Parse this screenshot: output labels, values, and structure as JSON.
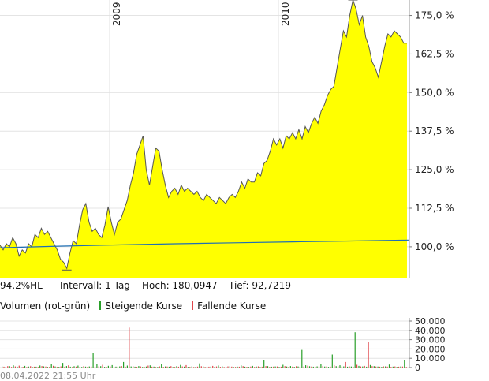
{
  "chart_data": [
    {
      "type": "area",
      "x_labels": [
        "2009",
        "2010"
      ],
      "y_ticks": [
        "175,0 %",
        "162,5 %",
        "150,0 %",
        "137,5 %",
        "125,0 %",
        "112,5 %",
        "100,0 %"
      ],
      "ylim": [
        90,
        180
      ],
      "grid": true,
      "series": [
        {
          "kind": "price",
          "color": "#ffff00",
          "line_color": "#555555",
          "values": [
            100.5,
            99,
            101,
            100,
            103,
            101,
            97,
            99,
            98,
            101,
            100,
            104,
            103,
            106,
            104,
            105,
            103,
            101,
            99,
            96,
            95,
            93,
            98,
            102,
            101,
            107,
            112,
            114,
            108,
            105,
            106,
            104,
            103,
            107,
            113,
            108,
            104,
            108,
            109,
            112,
            115,
            120,
            124,
            130,
            133,
            136,
            125,
            120,
            126,
            132,
            131,
            125,
            120,
            116,
            118,
            119,
            117,
            120,
            118,
            119,
            118,
            117,
            118,
            116,
            115,
            117,
            116,
            115,
            114,
            116,
            115,
            114,
            116,
            117,
            116,
            118,
            121,
            119,
            122,
            121,
            121,
            124,
            123,
            127,
            128,
            131,
            135,
            133,
            135,
            132,
            136,
            135,
            137,
            135,
            138,
            135,
            139,
            137,
            140,
            142,
            140,
            144,
            146,
            149,
            151,
            152,
            158,
            164,
            170,
            168,
            175,
            180,
            177,
            172,
            175,
            168,
            165,
            160,
            158,
            155,
            160,
            165,
            169,
            168,
            170,
            169,
            168,
            166,
            166
          ]
        },
        {
          "kind": "benchmark",
          "color": "#1f6fb4",
          "values": [
            99.7,
            100.2,
            100.6,
            101,
            101.3,
            101.6,
            101.9,
            102.2
          ]
        }
      ]
    },
    {
      "type": "bar",
      "y_ticks": [
        "50.000",
        "40.000",
        "30.000",
        "20.000",
        "10.000",
        "0"
      ],
      "ylim": [
        0,
        50000
      ],
      "grid": true,
      "series": [
        {
          "name": "Steigende Kurse",
          "color": "#2aa02a",
          "values": [
            1200,
            800,
            1500,
            2400,
            900,
            700,
            1800,
            1100,
            600,
            900,
            2200,
            1300,
            700,
            3500,
            1200,
            800,
            5000,
            1600,
            900,
            1400,
            2100,
            700,
            1000,
            1200,
            16000,
            4000,
            1500,
            800,
            1900,
            2600,
            1000,
            1300,
            6000,
            2100,
            1200,
            900,
            1600,
            700,
            1100,
            2400,
            1000,
            700,
            3800,
            1200,
            900,
            600,
            1500,
            2800,
            1000,
            700,
            1300,
            800,
            4500,
            1200,
            900,
            1100,
            700,
            2200,
            1300,
            800,
            1500,
            600,
            1000,
            2300,
            900,
            700,
            1800,
            1100,
            600,
            8000,
            1500,
            900,
            1200,
            700,
            3000,
            1100,
            1600,
            800,
            1200,
            19000,
            2500,
            1400,
            900,
            1300,
            4200,
            1100,
            800,
            14000,
            1500,
            2500,
            1300,
            900,
            1100,
            38000,
            1800,
            1200,
            900,
            2700,
            1500,
            1100,
            800,
            1300,
            3200,
            1000,
            700,
            1200,
            8000
          ]
        },
        {
          "name": "Fallende Kurse",
          "color": "#e0474c",
          "values": [
            900,
            1500,
            700,
            1200,
            2000,
            800,
            600,
            1400,
            900,
            700,
            1600,
            1100,
            800,
            1900,
            700,
            1300,
            900,
            2400,
            600,
            1000,
            800,
            1500,
            700,
            1100,
            900,
            1300,
            3000,
            800,
            1200,
            700,
            1000,
            1600,
            900,
            43000,
            1400,
            800,
            1200,
            700,
            2100,
            900,
            600,
            1300,
            800,
            1100,
            1500,
            700,
            900,
            1200,
            2600,
            800,
            600,
            1000,
            1400,
            700,
            900,
            1800,
            1200,
            800,
            600,
            1300,
            1000,
            700,
            900,
            1500,
            800,
            1100,
            700,
            1300,
            900,
            1600,
            700,
            1000,
            1200,
            900,
            1500,
            800,
            1000,
            1400,
            900,
            1200,
            2000,
            1100,
            900,
            1300,
            1800,
            1200,
            1000,
            2600,
            1400,
            1100,
            6000,
            1300,
            900,
            3000,
            1200,
            1800,
            28000,
            1500,
            1100,
            900,
            1300,
            1000,
            800,
            1200,
            900,
            1100,
            700
          ]
        }
      ]
    }
  ],
  "info": {
    "percent": "94,2%HL",
    "interval": "Intervall: 1 Tag",
    "high": "Hoch: 180,0947",
    "low": "Tief: 92,7219"
  },
  "volume_legend": {
    "label": "Volumen (rot-grün)",
    "up": "Steigende Kurse",
    "down": "Fallende Kurse"
  },
  "timestamp": "08.04.2022 21:55 Uhr"
}
